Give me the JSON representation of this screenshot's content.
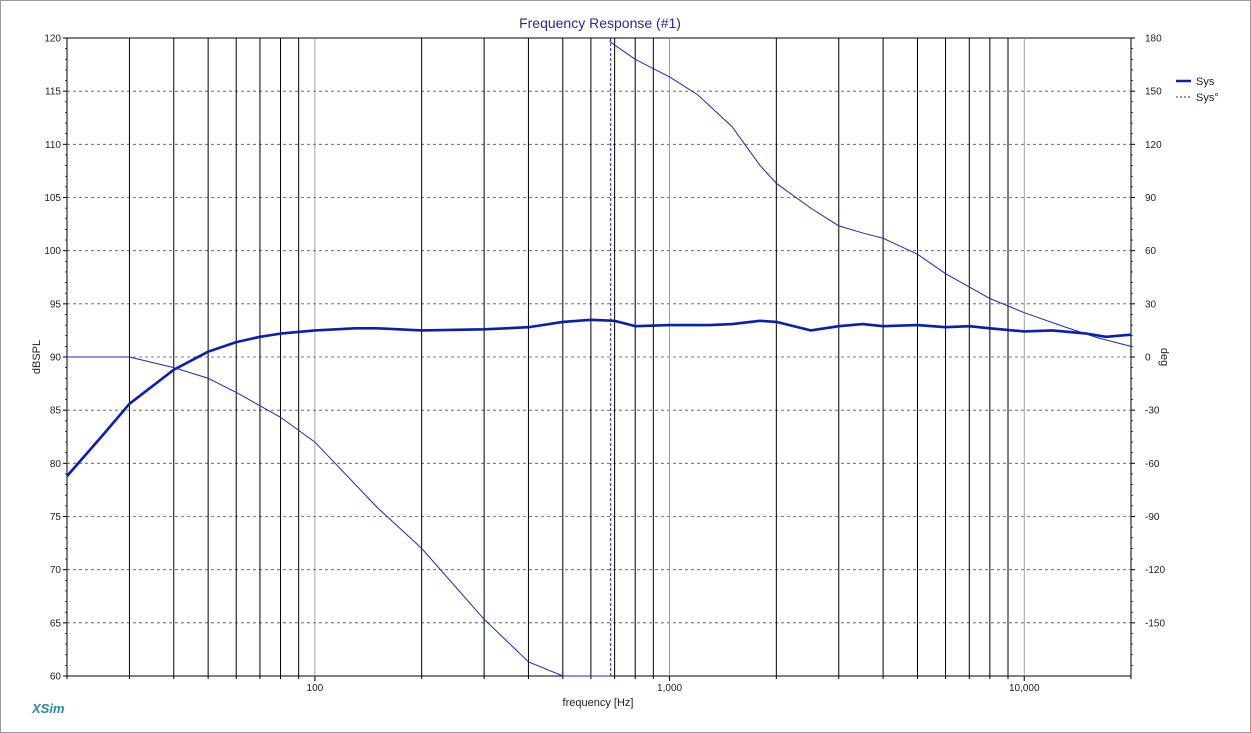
{
  "chart_data": {
    "type": "line",
    "title": "Frequency Response (#1)",
    "xlabel": "frequency [Hz]",
    "ylabel": "dBSPL",
    "y2label": "deg",
    "x_scale": "log",
    "xlim": [
      20,
      20000
    ],
    "ylim": [
      60,
      120
    ],
    "y2lim": [
      -180,
      180
    ],
    "x_ticks": [
      {
        "value": 100,
        "label": "100"
      },
      {
        "value": 1000,
        "label": "1,000"
      },
      {
        "value": 10000,
        "label": "10,000"
      }
    ],
    "y_ticks": [
      {
        "value": 120,
        "label": "120"
      },
      {
        "value": 115,
        "label": "115"
      },
      {
        "value": 110,
        "label": "110"
      },
      {
        "value": 105,
        "label": "105"
      },
      {
        "value": 100,
        "label": "100"
      },
      {
        "value": 95,
        "label": "95"
      },
      {
        "value": 90,
        "label": "90"
      },
      {
        "value": 85,
        "label": "85"
      },
      {
        "value": 80,
        "label": "80"
      },
      {
        "value": 75,
        "label": "75"
      },
      {
        "value": 70,
        "label": "70"
      },
      {
        "value": 65,
        "label": "65"
      },
      {
        "value": 60,
        "label": "60"
      }
    ],
    "y2_ticks": [
      {
        "value": 180,
        "label": "180"
      },
      {
        "value": 150,
        "label": "150"
      },
      {
        "value": 120,
        "label": "120"
      },
      {
        "value": 90,
        "label": "90"
      },
      {
        "value": 60,
        "label": "60"
      },
      {
        "value": 30,
        "label": "30"
      },
      {
        "value": 0,
        "label": "0"
      },
      {
        "value": -30,
        "label": "-30"
      },
      {
        "value": -60,
        "label": "-60"
      },
      {
        "value": -90,
        "label": "-90"
      },
      {
        "value": -120,
        "label": "-120"
      },
      {
        "value": -150,
        "label": "-150"
      }
    ],
    "grid": true,
    "legend": "top-right",
    "series": [
      {
        "name": "Sys",
        "axis": "left",
        "color": "#0a1eb4",
        "style": "solid-thick",
        "x": [
          20,
          25,
          30,
          40,
          50,
          60,
          70,
          80,
          100,
          130,
          150,
          200,
          300,
          400,
          500,
          600,
          700,
          800,
          1000,
          1300,
          1500,
          1800,
          2000,
          2500,
          3000,
          3500,
          4000,
          5000,
          6000,
          7000,
          8000,
          10000,
          12000,
          15000,
          17000,
          20000
        ],
        "y": [
          78.8,
          82.5,
          85.6,
          88.8,
          90.5,
          91.4,
          91.9,
          92.2,
          92.5,
          92.7,
          92.7,
          92.5,
          92.6,
          92.8,
          93.3,
          93.5,
          93.4,
          92.9,
          93.0,
          93.0,
          93.1,
          93.4,
          93.3,
          92.5,
          92.9,
          93.1,
          92.9,
          93.0,
          92.8,
          92.9,
          92.7,
          92.4,
          92.5,
          92.2,
          91.9,
          92.1
        ]
      },
      {
        "name": "Sys°",
        "axis": "right",
        "color": "#1a2ac0",
        "style": "thin-with-dashed-wrap",
        "x": [
          20,
          30,
          40,
          50,
          60,
          80,
          100,
          150,
          200,
          300,
          400,
          500,
          600,
          650,
          680,
          700,
          800,
          1000,
          1200,
          1500,
          1800,
          2000,
          2500,
          3000,
          3500,
          4000,
          5000,
          6000,
          8000,
          10000,
          13000,
          16000,
          20000
        ],
        "y": [
          0,
          0,
          -6,
          -12,
          -20,
          -34,
          -48,
          -85,
          -108,
          -148,
          -172,
          -190,
          -205,
          -210,
          178,
          176,
          168,
          158,
          148,
          130,
          108,
          98,
          84,
          74,
          70,
          67,
          58,
          47,
          33,
          25,
          17,
          11,
          6
        ]
      }
    ]
  },
  "legend": {
    "items": [
      {
        "label": "Sys",
        "color": "#0a1eb4"
      },
      {
        "label": "Sys°",
        "color": "#1a2ac0"
      }
    ]
  },
  "brand": "XSim"
}
